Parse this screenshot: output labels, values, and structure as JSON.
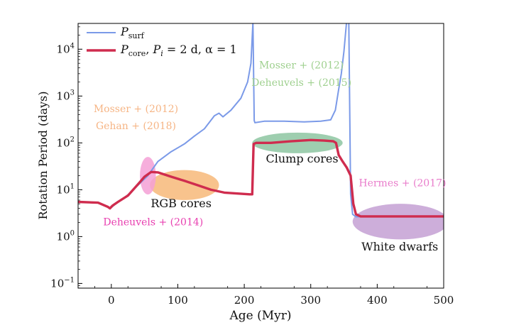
{
  "chart_data": {
    "type": "line",
    "xlabel": "Age (Myr)",
    "ylabel": "Rotation Period (days)",
    "xlim": [
      -50,
      500
    ],
    "ylim_log10": [
      -1.1,
      4.55
    ],
    "y_scale": "log",
    "x_ticks": [
      {
        "value": 0,
        "label": "0"
      },
      {
        "value": 100,
        "label": "100"
      },
      {
        "value": 200,
        "label": "200"
      },
      {
        "value": 300,
        "label": "300"
      },
      {
        "value": 400,
        "label": "400"
      },
      {
        "value": 500,
        "label": "500"
      }
    ],
    "y_ticks": [
      {
        "exp": -1,
        "base": "10",
        "sup": "−1"
      },
      {
        "exp": 0,
        "base": "10",
        "sup": "0"
      },
      {
        "exp": 1,
        "base": "10",
        "sup": "1"
      },
      {
        "exp": 2,
        "base": "10",
        "sup": "2"
      },
      {
        "exp": 3,
        "base": "10",
        "sup": "3"
      },
      {
        "exp": 4,
        "base": "10",
        "sup": "4"
      }
    ],
    "legend": {
      "placement": "top-left",
      "entries": [
        {
          "symbol": "P",
          "sub": "surf",
          "extra": ""
        },
        {
          "symbol": "P",
          "sub": "core",
          "extra": ", P",
          "extra_sub": "i",
          "extra_tail": " = 2 d, α = 1"
        }
      ]
    },
    "series": [
      {
        "color": "#7b9ae8",
        "points": [
          [
            -50,
            5.5
          ],
          [
            -20,
            5.3
          ],
          [
            -5,
            4.3
          ],
          [
            -2,
            4.0
          ],
          [
            2,
            4.4
          ],
          [
            10,
            5.5
          ],
          [
            20,
            6.8
          ],
          [
            30,
            9.0
          ],
          [
            40,
            12.5
          ],
          [
            55,
            20
          ],
          [
            70,
            40
          ],
          [
            90,
            65
          ],
          [
            110,
            95
          ],
          [
            125,
            140
          ],
          [
            140,
            200
          ],
          [
            155,
            380
          ],
          [
            162,
            430
          ],
          [
            168,
            360
          ],
          [
            180,
            500
          ],
          [
            195,
            900
          ],
          [
            205,
            2000
          ],
          [
            210,
            5000
          ],
          [
            213,
            38000
          ],
          [
            215,
            300
          ],
          [
            216,
            270
          ],
          [
            230,
            290
          ],
          [
            260,
            290
          ],
          [
            290,
            280
          ],
          [
            315,
            290
          ],
          [
            330,
            310
          ],
          [
            337,
            500
          ],
          [
            342,
            1400
          ],
          [
            346,
            3000
          ],
          [
            350,
            9000
          ],
          [
            354,
            40000
          ],
          [
            357,
            80000
          ],
          [
            360,
            8
          ],
          [
            363,
            3.0
          ],
          [
            368,
            2.65
          ],
          [
            400,
            2.65
          ],
          [
            450,
            2.65
          ],
          [
            500,
            2.65
          ]
        ]
      },
      {
        "color": "#cf2c4e",
        "points": [
          [
            -50,
            5.5
          ],
          [
            -20,
            5.3
          ],
          [
            -5,
            4.3
          ],
          [
            -2,
            4.0
          ],
          [
            2,
            4.6
          ],
          [
            10,
            5.5
          ],
          [
            25,
            7.5
          ],
          [
            40,
            13
          ],
          [
            50,
            19
          ],
          [
            60,
            24
          ],
          [
            70,
            23.5
          ],
          [
            90,
            19
          ],
          [
            110,
            15.5
          ],
          [
            130,
            12.5
          ],
          [
            150,
            10
          ],
          [
            170,
            8.7
          ],
          [
            190,
            8.3
          ],
          [
            208,
            8.0
          ],
          [
            212,
            8.0
          ],
          [
            214,
            95
          ],
          [
            218,
            100
          ],
          [
            240,
            100
          ],
          [
            270,
            108
          ],
          [
            300,
            115
          ],
          [
            320,
            112
          ],
          [
            334,
            108
          ],
          [
            338,
            100
          ],
          [
            342,
            55
          ],
          [
            348,
            40
          ],
          [
            354,
            30
          ],
          [
            360,
            20
          ],
          [
            364,
            5
          ],
          [
            368,
            3.0
          ],
          [
            375,
            2.7
          ],
          [
            400,
            2.7
          ],
          [
            450,
            2.7
          ],
          [
            500,
            2.7
          ]
        ]
      }
    ],
    "regions": [
      {
        "name": "RGB cores",
        "color": "#f7b979",
        "cx": 110,
        "cy_log10": 1.1,
        "rx_data": 52,
        "ry_dex": 0.32,
        "label": "RGB cores",
        "label_x": 105,
        "label_y_log10": 0.63
      },
      {
        "name": "Clump cores",
        "color": "#8dc6a1",
        "cx": 280,
        "cy_log10": 2.0,
        "rx_data": 68,
        "ry_dex": 0.22,
        "label": "Clump cores",
        "label_x": 287,
        "label_y_log10": 1.58
      },
      {
        "name": "White dwarfs",
        "color": "#c4a0d4",
        "cx": 435,
        "cy_log10": 0.32,
        "rx_data": 72,
        "ry_dex": 0.38,
        "label": "White dwarfs",
        "label_x": 434,
        "label_y_log10": -0.3
      },
      {
        "name": "Deheuvels 2014",
        "color": "#f4a0d6",
        "cx": 55,
        "cy_log10": 1.3,
        "rx_data": 12,
        "ry_dex": 0.4,
        "label": "",
        "label_x": 0,
        "label_y_log10": 0
      }
    ],
    "annotations": [
      {
        "text": "Mosser + (2012)",
        "color": "#f6b585",
        "x": 37,
        "y_log10": 2.66
      },
      {
        "text": "Gehan + (2018)",
        "color": "#f6b585",
        "x": 37,
        "y_log10": 2.29
      },
      {
        "text": "Mosser + (2012)",
        "color": "#9fd08f",
        "x": 286,
        "y_log10": 3.59
      },
      {
        "text": "Deheuvels + (2015)",
        "color": "#9fd08f",
        "x": 286,
        "y_log10": 3.22
      },
      {
        "text": "Hermes + (2017)",
        "color": "#e97ccb",
        "x": 438,
        "y_log10": 1.07
      },
      {
        "text": "Deheuvels + (2014)",
        "color": "#e83fb0",
        "x": 63,
        "y_log10": 0.24
      }
    ]
  }
}
